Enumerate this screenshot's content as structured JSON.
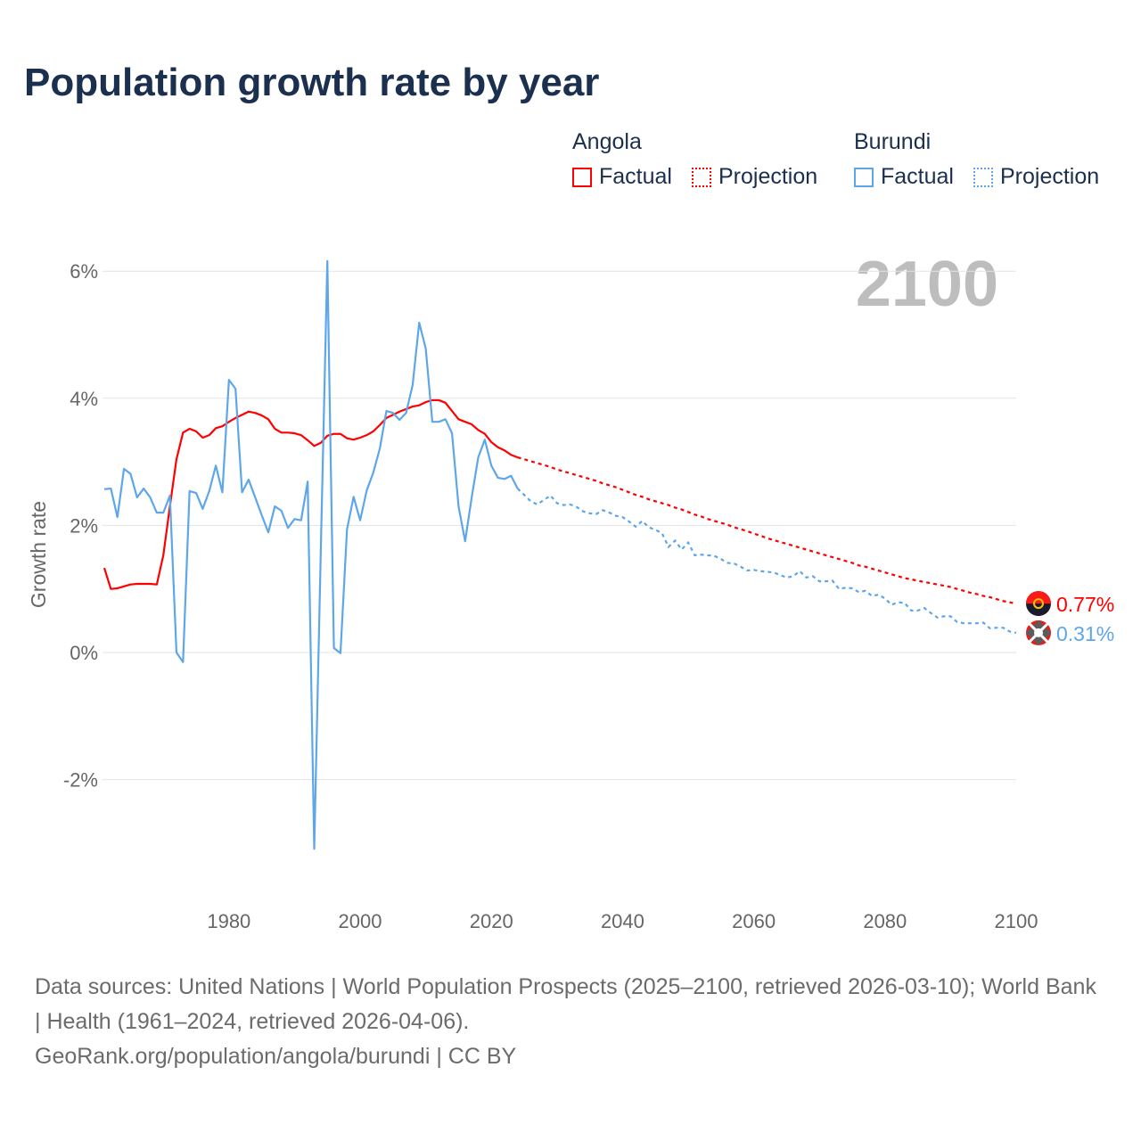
{
  "title": "Population growth rate by year",
  "legend": {
    "groups": [
      {
        "country": "Angola",
        "factual": "Factual",
        "projection": "Projection",
        "color": "#ff0000"
      },
      {
        "country": "Burundi",
        "factual": "Factual",
        "projection": "Projection",
        "color": "#5ea6ea"
      }
    ]
  },
  "footer": {
    "sources": "Data sources: United Nations | World Population Prospects (2025–2100, retrieved 2026-03-10); World Bank | Health (1961–2024, retrieved 2026-04-06).",
    "credit": "GeoRank.org/population/angola/burundi | CC BY"
  },
  "chart_data": {
    "type": "line",
    "title": "Population growth rate by year",
    "ylabel": "Growth rate",
    "xlabel": "",
    "current_year_label": "2100",
    "xlim": [
      1961,
      2100
    ],
    "ylim": [
      -3.5,
      6.3
    ],
    "x_ticks": [
      {
        "value": 1980,
        "label": "1980"
      },
      {
        "value": 2000,
        "label": "2000"
      },
      {
        "value": 2020,
        "label": "2020"
      },
      {
        "value": 2040,
        "label": "2040"
      },
      {
        "value": 2060,
        "label": "2060"
      },
      {
        "value": 2080,
        "label": "2080"
      },
      {
        "value": 2100,
        "label": "2100"
      }
    ],
    "y_ticks": [
      {
        "value": 6,
        "label": "6%"
      },
      {
        "value": 4,
        "label": "4%"
      },
      {
        "value": 2,
        "label": "2%"
      },
      {
        "value": 0,
        "label": "0%"
      },
      {
        "value": -2,
        "label": "-2%"
      }
    ],
    "grid": true,
    "legend_position": "top-right",
    "series": [
      {
        "name": "Angola",
        "color": "#ff0000",
        "end_label": "0.77%",
        "factual_start": 1961,
        "factual": [
          1.33,
          1.0,
          1.01,
          1.04,
          1.07,
          1.08,
          1.08,
          1.08,
          1.07,
          1.53,
          2.3,
          3.04,
          3.46,
          3.52,
          3.48,
          3.38,
          3.42,
          3.53,
          3.56,
          3.63,
          3.69,
          3.74,
          3.79,
          3.77,
          3.73,
          3.67,
          3.52,
          3.46,
          3.46,
          3.45,
          3.42,
          3.34,
          3.25,
          3.3,
          3.41,
          3.44,
          3.44,
          3.37,
          3.35,
          3.38,
          3.42,
          3.48,
          3.58,
          3.69,
          3.74,
          3.79,
          3.83,
          3.87,
          3.89,
          3.94,
          3.97,
          3.97,
          3.93,
          3.8,
          3.67,
          3.63,
          3.59,
          3.5,
          3.44,
          3.31,
          3.23,
          3.18,
          3.11,
          3.07
        ],
        "projection_start": 2025,
        "projection": [
          3.04,
          3.01,
          2.98,
          2.95,
          2.92,
          2.88,
          2.85,
          2.82,
          2.79,
          2.76,
          2.73,
          2.7,
          2.66,
          2.63,
          2.6,
          2.56,
          2.52,
          2.48,
          2.45,
          2.41,
          2.38,
          2.35,
          2.32,
          2.28,
          2.25,
          2.21,
          2.17,
          2.14,
          2.1,
          2.07,
          2.04,
          2.01,
          1.97,
          1.94,
          1.91,
          1.87,
          1.84,
          1.8,
          1.77,
          1.74,
          1.71,
          1.68,
          1.65,
          1.62,
          1.59,
          1.56,
          1.53,
          1.5,
          1.47,
          1.44,
          1.41,
          1.37,
          1.35,
          1.32,
          1.29,
          1.26,
          1.23,
          1.2,
          1.17,
          1.15,
          1.13,
          1.11,
          1.09,
          1.07,
          1.05,
          1.03,
          1.0,
          0.97,
          0.94,
          0.92,
          0.89,
          0.87,
          0.84,
          0.81,
          0.79,
          0.77
        ]
      },
      {
        "name": "Burundi",
        "color": "#5ea6ea",
        "end_label": "0.31%",
        "factual_start": 1961,
        "factual": [
          2.57,
          2.58,
          2.13,
          2.89,
          2.81,
          2.44,
          2.58,
          2.44,
          2.2,
          2.2,
          2.47,
          0.0,
          -0.15,
          2.54,
          2.51,
          2.26,
          2.54,
          2.94,
          2.52,
          4.29,
          4.15,
          2.52,
          2.72,
          2.44,
          2.16,
          1.89,
          2.3,
          2.23,
          1.96,
          2.1,
          2.08,
          2.69,
          -3.09,
          1.6,
          6.16,
          0.07,
          -0.01,
          1.94,
          2.45,
          2.08,
          2.55,
          2.83,
          3.21,
          3.8,
          3.77,
          3.66,
          3.77,
          4.21,
          5.19,
          4.78,
          3.63,
          3.63,
          3.67,
          3.45,
          2.3,
          1.75,
          2.44,
          3.07,
          3.35,
          2.94,
          2.75,
          2.73,
          2.78,
          2.58
        ],
        "projection_start": 2025,
        "projection": [
          2.48,
          2.38,
          2.33,
          2.4,
          2.47,
          2.35,
          2.32,
          2.33,
          2.29,
          2.22,
          2.19,
          2.18,
          2.24,
          2.2,
          2.15,
          2.13,
          2.06,
          1.98,
          2.07,
          1.97,
          1.93,
          1.88,
          1.66,
          1.76,
          1.62,
          1.73,
          1.53,
          1.54,
          1.53,
          1.52,
          1.47,
          1.41,
          1.4,
          1.35,
          1.29,
          1.3,
          1.28,
          1.27,
          1.26,
          1.22,
          1.18,
          1.2,
          1.28,
          1.18,
          1.2,
          1.12,
          1.12,
          1.13,
          1.0,
          1.02,
          1.01,
          0.95,
          0.97,
          0.89,
          0.91,
          0.85,
          0.75,
          0.79,
          0.78,
          0.66,
          0.66,
          0.7,
          0.62,
          0.55,
          0.57,
          0.57,
          0.48,
          0.46,
          0.46,
          0.46,
          0.47,
          0.38,
          0.39,
          0.39,
          0.33,
          0.31
        ]
      }
    ]
  }
}
